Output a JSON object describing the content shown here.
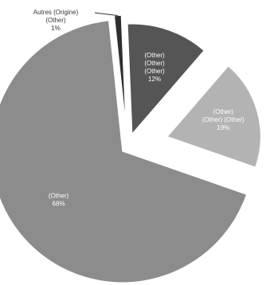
{
  "chart_data": {
    "type": "pie",
    "title": "",
    "slices": [
      {
        "label_lines": [
          "Autres (Origine)",
          "(Other)",
          "1%"
        ],
        "value": 1,
        "color": "#2f2f2f",
        "label_placement": "outside"
      },
      {
        "label_lines": [
          "(Other)",
          "(Other)",
          "(Other)",
          "12%"
        ],
        "value": 12,
        "color": "#555555",
        "label_placement": "inside"
      },
      {
        "label_lines": [
          "(Other)",
          "(Other) (Other)",
          "19%"
        ],
        "value": 19,
        "color": "#b3b3b3",
        "label_placement": "inside"
      },
      {
        "label_lines": [
          "(Other)",
          "68%"
        ],
        "value": 68,
        "color": "#8c8c8c",
        "label_placement": "inside"
      }
    ]
  }
}
